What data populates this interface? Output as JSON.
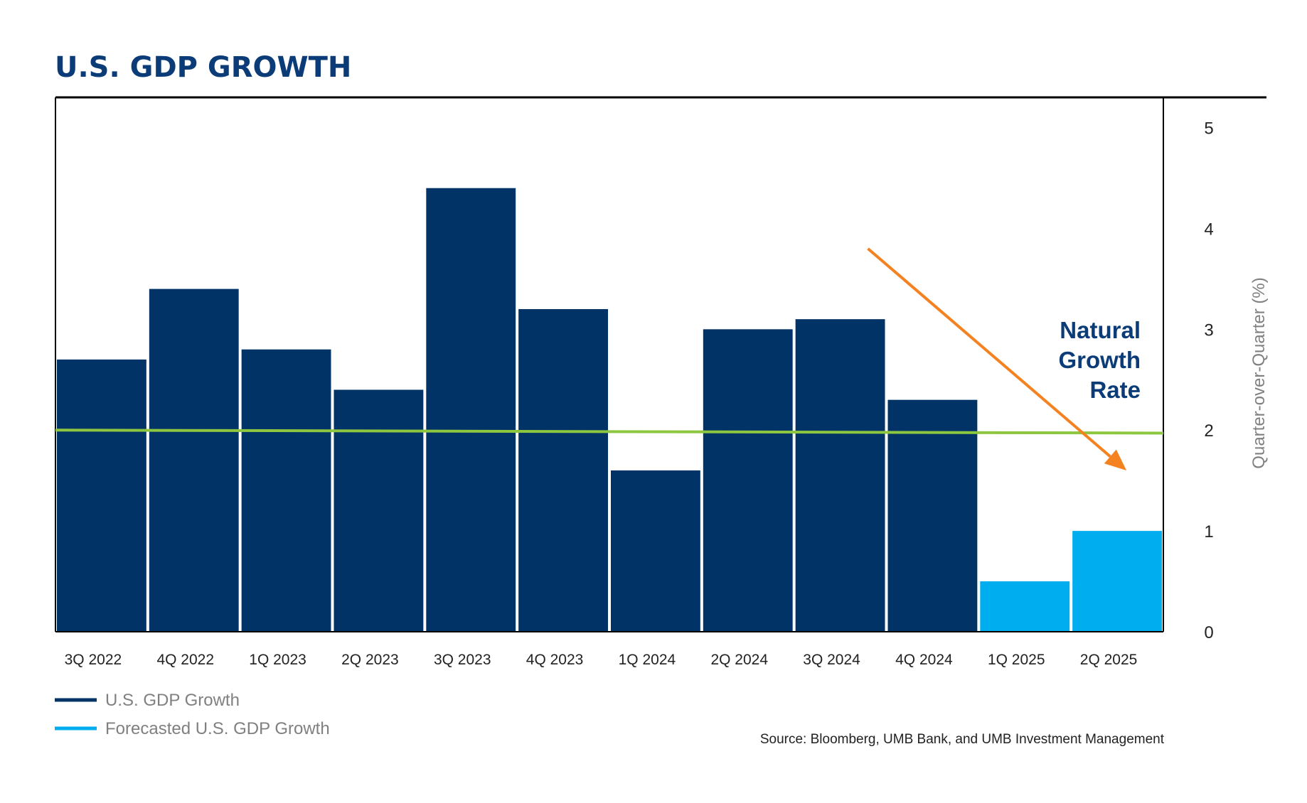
{
  "chart_data": {
    "type": "bar",
    "title": "U.S. GDP GROWTH",
    "categories": [
      "3Q 2022",
      "4Q 2022",
      "1Q 2023",
      "2Q 2023",
      "3Q 2023",
      "4Q 2023",
      "1Q 2024",
      "2Q 2024",
      "3Q 2024",
      "4Q 2024",
      "1Q 2025",
      "2Q 2025"
    ],
    "values": [
      2.7,
      3.4,
      2.8,
      2.4,
      4.4,
      3.2,
      1.6,
      3.0,
      3.1,
      2.3,
      0.5,
      1.0
    ],
    "forecast": [
      false,
      false,
      false,
      false,
      false,
      false,
      false,
      false,
      false,
      false,
      true,
      true
    ],
    "ylabel": "Quarter-over-Quarter (%)",
    "ylim": [
      0,
      5.3
    ],
    "yticks": [
      0,
      1,
      2,
      3,
      4,
      5
    ],
    "ytick_labels": [
      "0",
      "1",
      "2",
      "3",
      "4",
      "5"
    ],
    "y_axis_side": "right",
    "natural_growth_rate": {
      "start": 2.0,
      "end": 1.97
    },
    "annotation": {
      "lines": [
        "Natural",
        "Growth",
        "Rate"
      ]
    },
    "trend_arrow": {
      "from_category_index": 8.3,
      "from_value": 3.8,
      "to_category_index": 11.1,
      "to_value": 1.6
    },
    "legend": [
      {
        "label": "U.S. GDP Growth",
        "color": "#023366"
      },
      {
        "label": "Forecasted U.S. GDP Growth",
        "color": "#00ADEF"
      }
    ],
    "source": "Source: Bloomberg, UMB Bank, and UMB Investment Management"
  },
  "colors": {
    "actual": "#023366",
    "forecast": "#00ADEF",
    "natural_line": "#8DC63F",
    "arrow": "#F58220",
    "title": "#0B3C78",
    "axis_label": "#808080",
    "text": "#222222"
  }
}
